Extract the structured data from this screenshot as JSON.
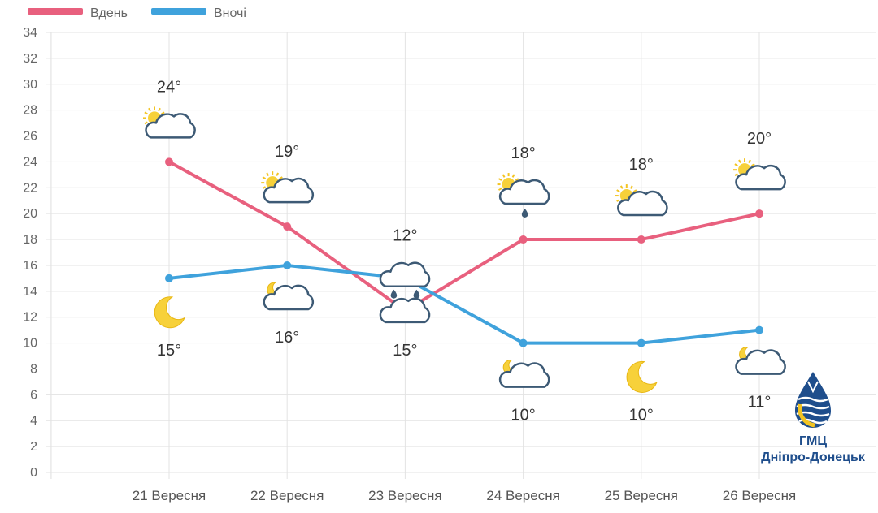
{
  "chart_data": {
    "type": "line",
    "categories": [
      "21 Вересня",
      "22 Вересня",
      "23 Вересня",
      "24 Вересня",
      "25 Вересня",
      "26 Вересня"
    ],
    "series": [
      {
        "name": "Вдень",
        "color": "#e8607e",
        "values": [
          24,
          19,
          12.5,
          18,
          18,
          20
        ],
        "labels": [
          "24°",
          "19°",
          "12°",
          "18°",
          "18°",
          "20°"
        ],
        "icons": [
          "sun-cloud-icon",
          "sun-cloud-icon",
          "rain-cloud-icon",
          "sun-rain-cloud-icon",
          "sun-cloud-icon",
          "sun-cloud-icon"
        ]
      },
      {
        "name": "Вночі",
        "color": "#3fa2dc",
        "values": [
          15,
          16,
          15,
          10,
          10,
          11
        ],
        "labels": [
          "15°",
          "16°",
          "15°",
          "10°",
          "10°",
          "11°"
        ],
        "icons": [
          "moon-icon",
          "moon-cloud-icon",
          "cloud-icon",
          "moon-cloud-icon",
          "moon-icon",
          "moon-cloud-icon"
        ]
      }
    ],
    "ylim": [
      0,
      34
    ],
    "yticks": [
      0,
      2,
      4,
      6,
      8,
      10,
      12,
      14,
      16,
      18,
      20,
      22,
      24,
      26,
      28,
      30,
      32,
      34
    ],
    "grid": true,
    "legend": "top-left"
  },
  "logo": {
    "line1": "ГМЦ",
    "line2": "Дніпро-Донецьк"
  }
}
